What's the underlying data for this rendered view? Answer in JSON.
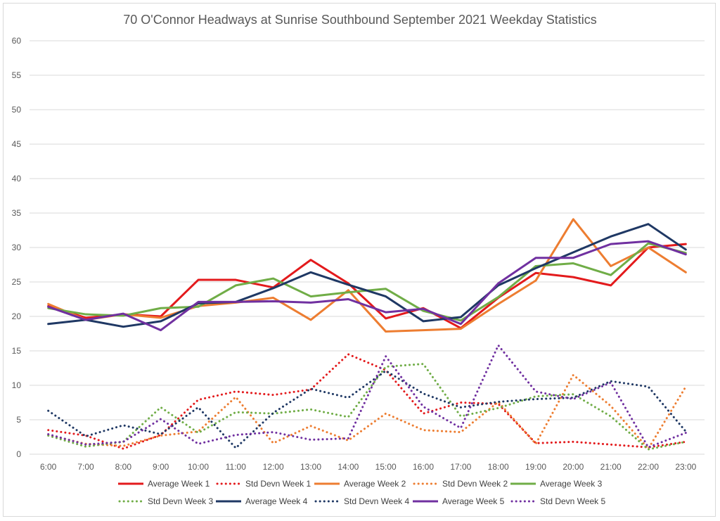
{
  "chart_data": {
    "type": "line",
    "title": "70 O'Connor Headways at Sunrise Southbound September 2021 Weekday Statistics",
    "xlabel": "",
    "ylabel": "",
    "ylim": [
      0,
      60
    ],
    "yticks": [
      0,
      5,
      10,
      15,
      20,
      25,
      30,
      35,
      40,
      45,
      50,
      55,
      60
    ],
    "grid": "horizontal",
    "legend_position": "bottom",
    "categories": [
      "6:00",
      "7:00",
      "8:00",
      "9:00",
      "10:00",
      "11:00",
      "12:00",
      "13:00",
      "14:00",
      "15:00",
      "16:00",
      "17:00",
      "18:00",
      "19:00",
      "20:00",
      "21:00",
      "22:00",
      "23:00"
    ],
    "series": [
      {
        "name": "Average Week 1",
        "style": "solid",
        "color": "#e31a1c",
        "values": [
          21.5,
          19.8,
          20.3,
          20.0,
          25.3,
          25.3,
          24.2,
          28.2,
          24.8,
          19.7,
          21.2,
          18.3,
          22.7,
          26.3,
          25.7,
          24.5,
          30.0,
          30.5
        ]
      },
      {
        "name": "Std Devn Week 1",
        "style": "dotted",
        "color": "#e31a1c",
        "values": [
          3.5,
          2.7,
          0.8,
          2.8,
          7.9,
          9.1,
          8.6,
          9.4,
          14.5,
          12.2,
          5.9,
          7.5,
          7.3,
          1.6,
          1.8,
          1.4,
          1.0,
          1.8
        ]
      },
      {
        "name": "Average Week 2",
        "style": "solid",
        "color": "#ed7d31",
        "values": [
          21.8,
          19.5,
          20.3,
          19.8,
          21.5,
          22.0,
          22.7,
          19.5,
          23.8,
          17.8,
          18.0,
          18.2,
          21.8,
          25.2,
          34.1,
          27.3,
          30.0,
          26.4
        ]
      },
      {
        "name": "Std Devn Week 2",
        "style": "dotted",
        "color": "#ed7d31",
        "values": [
          2.8,
          1.5,
          1.2,
          2.7,
          3.3,
          8.3,
          1.6,
          4.1,
          2.0,
          5.9,
          3.5,
          3.2,
          7.6,
          1.5,
          11.5,
          7.0,
          0.8,
          9.8
        ]
      },
      {
        "name": "Average Week 3",
        "style": "solid",
        "color": "#70ad47",
        "values": [
          21.2,
          20.3,
          20.1,
          21.2,
          21.4,
          24.5,
          25.5,
          22.9,
          23.5,
          24.0,
          20.8,
          19.4,
          22.8,
          27.3,
          27.7,
          26.0,
          30.6,
          29.2
        ]
      },
      {
        "name": "Std Devn Week 3",
        "style": "dotted",
        "color": "#70ad47",
        "values": [
          2.7,
          1.1,
          1.8,
          6.8,
          3.1,
          6.1,
          5.9,
          6.5,
          5.4,
          12.7,
          13.1,
          5.5,
          6.7,
          8.4,
          8.7,
          5.5,
          0.7,
          1.8
        ]
      },
      {
        "name": "Average Week 4",
        "style": "solid",
        "color": "#1f3864",
        "values": [
          18.9,
          19.5,
          18.5,
          19.3,
          21.9,
          22.1,
          24.1,
          26.4,
          24.6,
          22.9,
          19.3,
          19.9,
          24.5,
          27.0,
          29.3,
          31.6,
          33.4,
          29.7
        ]
      },
      {
        "name": "Std Devn Week 4",
        "style": "dotted",
        "color": "#1f3864",
        "values": [
          6.3,
          2.6,
          4.2,
          2.9,
          6.8,
          0.9,
          6.0,
          9.5,
          8.2,
          12.1,
          8.8,
          6.8,
          7.6,
          8.0,
          8.2,
          10.6,
          9.8,
          3.3
        ]
      },
      {
        "name": "Average Week 5",
        "style": "solid",
        "color": "#7030a0",
        "values": [
          21.4,
          19.5,
          20.4,
          18.0,
          22.1,
          22.1,
          22.2,
          22.0,
          22.5,
          20.6,
          21.1,
          18.9,
          24.8,
          28.5,
          28.5,
          30.5,
          30.9,
          29.0
        ]
      },
      {
        "name": "Std Devn Week 5",
        "style": "dotted",
        "color": "#7030a0",
        "values": [
          2.9,
          1.4,
          1.8,
          5.1,
          1.5,
          2.8,
          3.2,
          2.1,
          2.3,
          14.2,
          6.9,
          3.8,
          15.8,
          9.1,
          8.0,
          10.4,
          1.0,
          3.1
        ]
      }
    ]
  }
}
